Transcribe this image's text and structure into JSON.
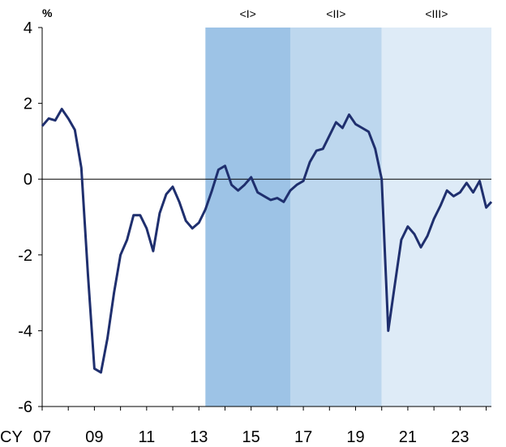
{
  "chart_data": {
    "type": "line",
    "ylabel": "%",
    "xlabel": "CY",
    "ylim": [
      -6,
      4
    ],
    "xlim": [
      2007.0,
      2024.2
    ],
    "y_ticks": [
      {
        "value": 4,
        "label": "4"
      },
      {
        "value": 2,
        "label": "2"
      },
      {
        "value": 0,
        "label": "0"
      },
      {
        "value": -2,
        "label": "-2"
      },
      {
        "value": -4,
        "label": "-4"
      },
      {
        "value": -6,
        "label": "-6"
      }
    ],
    "x_ticks": [
      {
        "value": 2007,
        "label": "07"
      },
      {
        "value": 2009,
        "label": "09"
      },
      {
        "value": 2011,
        "label": "11"
      },
      {
        "value": 2013,
        "label": "13"
      },
      {
        "value": 2015,
        "label": "15"
      },
      {
        "value": 2017,
        "label": "17"
      },
      {
        "value": 2019,
        "label": "19"
      },
      {
        "value": 2021,
        "label": "21"
      },
      {
        "value": 2023,
        "label": "23"
      }
    ],
    "shaded_periods": [
      {
        "label": "<I>",
        "start": 2013.25,
        "end": 2016.5,
        "color": "#9dc3e6"
      },
      {
        "label": "<II>",
        "start": 2016.5,
        "end": 2020.0,
        "color": "#bdd7ee"
      },
      {
        "label": "<III>",
        "start": 2020.0,
        "end": 2024.2,
        "color": "#deebf7"
      }
    ],
    "grid": false,
    "zero_line": true,
    "line_color": "#1f2f6e",
    "series": [
      {
        "points": [
          [
            2007.0,
            1.4
          ],
          [
            2007.25,
            1.6
          ],
          [
            2007.5,
            1.55
          ],
          [
            2007.75,
            1.85
          ],
          [
            2008.0,
            1.6
          ],
          [
            2008.25,
            1.3
          ],
          [
            2008.5,
            0.3
          ],
          [
            2008.75,
            -2.5
          ],
          [
            2009.0,
            -5.0
          ],
          [
            2009.25,
            -5.1
          ],
          [
            2009.5,
            -4.2
          ],
          [
            2009.75,
            -3.0
          ],
          [
            2010.0,
            -2.0
          ],
          [
            2010.25,
            -1.6
          ],
          [
            2010.5,
            -0.95
          ],
          [
            2010.75,
            -0.95
          ],
          [
            2011.0,
            -1.3
          ],
          [
            2011.25,
            -1.9
          ],
          [
            2011.5,
            -0.9
          ],
          [
            2011.75,
            -0.4
          ],
          [
            2012.0,
            -0.2
          ],
          [
            2012.25,
            -0.6
          ],
          [
            2012.5,
            -1.1
          ],
          [
            2012.75,
            -1.3
          ],
          [
            2013.0,
            -1.15
          ],
          [
            2013.25,
            -0.8
          ],
          [
            2013.5,
            -0.3
          ],
          [
            2013.75,
            0.25
          ],
          [
            2014.0,
            0.35
          ],
          [
            2014.25,
            -0.15
          ],
          [
            2014.5,
            -0.3
          ],
          [
            2014.75,
            -0.15
          ],
          [
            2015.0,
            0.05
          ],
          [
            2015.25,
            -0.35
          ],
          [
            2015.5,
            -0.45
          ],
          [
            2015.75,
            -0.55
          ],
          [
            2016.0,
            -0.5
          ],
          [
            2016.25,
            -0.6
          ],
          [
            2016.5,
            -0.3
          ],
          [
            2016.75,
            -0.15
          ],
          [
            2017.0,
            -0.05
          ],
          [
            2017.25,
            0.45
          ],
          [
            2017.5,
            0.75
          ],
          [
            2017.75,
            0.8
          ],
          [
            2018.0,
            1.15
          ],
          [
            2018.25,
            1.5
          ],
          [
            2018.5,
            1.35
          ],
          [
            2018.75,
            1.7
          ],
          [
            2019.0,
            1.45
          ],
          [
            2019.25,
            1.35
          ],
          [
            2019.5,
            1.25
          ],
          [
            2019.75,
            0.8
          ],
          [
            2020.0,
            0.0
          ],
          [
            2020.25,
            -4.0
          ],
          [
            2020.5,
            -2.8
          ],
          [
            2020.75,
            -1.6
          ],
          [
            2021.0,
            -1.25
          ],
          [
            2021.25,
            -1.45
          ],
          [
            2021.5,
            -1.8
          ],
          [
            2021.75,
            -1.5
          ],
          [
            2022.0,
            -1.05
          ],
          [
            2022.25,
            -0.7
          ],
          [
            2022.5,
            -0.3
          ],
          [
            2022.75,
            -0.45
          ],
          [
            2023.0,
            -0.35
          ],
          [
            2023.25,
            -0.1
          ],
          [
            2023.5,
            -0.35
          ],
          [
            2023.75,
            -0.05
          ],
          [
            2024.0,
            -0.75
          ],
          [
            2024.2,
            -0.6
          ]
        ]
      }
    ]
  }
}
